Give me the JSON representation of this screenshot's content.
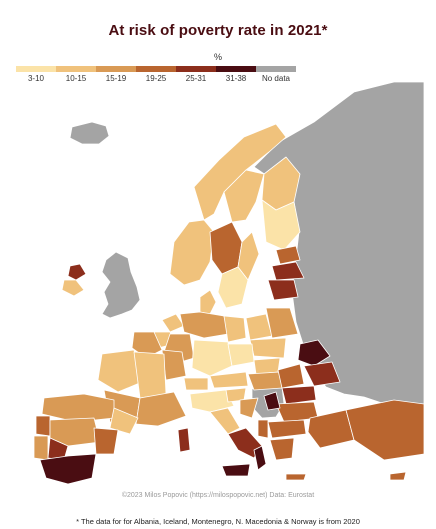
{
  "title": "At risk of poverty rate in 2021*",
  "legend": {
    "unit": "%",
    "classes": [
      {
        "label": "3-10",
        "color": "#fbe3a8"
      },
      {
        "label": "10-15",
        "color": "#f0c27c"
      },
      {
        "label": "15-19",
        "color": "#d99a55"
      },
      {
        "label": "19-25",
        "color": "#b9652f"
      },
      {
        "label": "25-31",
        "color": "#8c2e1c"
      },
      {
        "label": "31-38",
        "color": "#4a0d12"
      },
      {
        "label": "No data",
        "color": "#a4a4a4"
      }
    ]
  },
  "colors": {
    "no_data": "#a4a4a4",
    "sea": "#ffffff",
    "border": "#ffffff"
  },
  "credit": "©2023 Milos Popovic (https://milospopovic.net) Data: Eurostat",
  "footnote": "* The data for for Albania, Iceland, Montenegro, N. Macedonia & Norway is from 2020"
}
